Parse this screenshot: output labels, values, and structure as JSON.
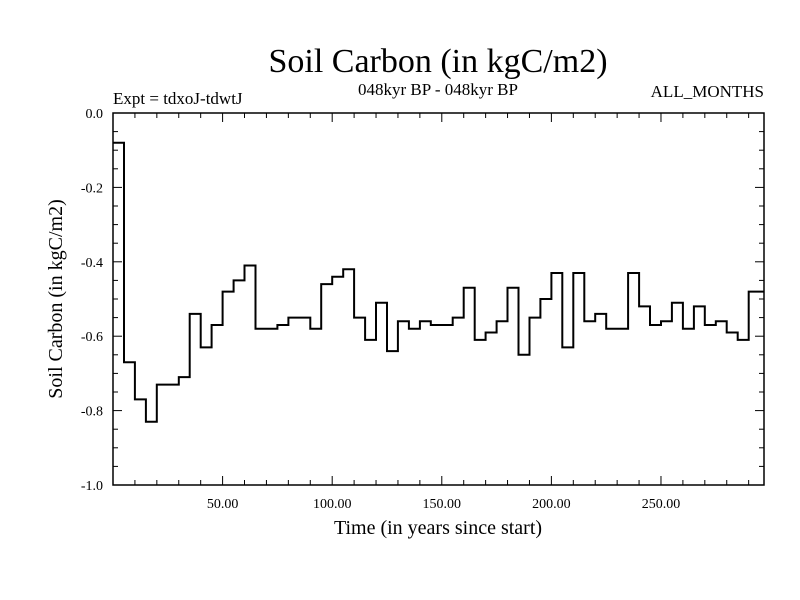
{
  "chart_data": {
    "type": "line",
    "style": "step",
    "title": "Soil Carbon (in kgC/m2)",
    "subtitle_left": "Expt = tdxoJ-tdwtJ",
    "subtitle_center": "048kyr BP - 048kyr BP",
    "subtitle_right": "ALL_MONTHS",
    "xlabel": "Time (in years since start)",
    "ylabel": "Soil Carbon (in kgC/m2)",
    "xlim": [
      0,
      297
    ],
    "ylim": [
      -1.0,
      0.0
    ],
    "x_ticks": [
      50,
      100,
      150,
      200,
      250
    ],
    "x_tick_labels": [
      "50.00",
      "100.00",
      "150.00",
      "200.00",
      "250.00"
    ],
    "y_ticks": [
      0.0,
      -0.2,
      -0.4,
      -0.6,
      -0.8,
      -1.0
    ],
    "y_tick_labels": [
      "0.0",
      "-0.2",
      "-0.4",
      "-0.6",
      "-0.8",
      "-1.0"
    ],
    "grid": false,
    "line_color": "#000000",
    "series": [
      {
        "x": [
          0,
          5,
          10,
          15,
          20,
          25,
          30,
          35,
          40,
          45,
          50,
          55,
          60,
          65,
          70,
          75,
          80,
          85,
          90,
          95,
          100,
          105,
          110,
          115,
          120,
          125,
          130,
          135,
          140,
          145,
          150,
          155,
          160,
          165,
          170,
          175,
          180,
          185,
          190,
          195,
          200,
          205,
          210,
          215,
          220,
          225,
          230,
          235,
          240,
          245,
          250,
          255,
          260,
          265,
          270,
          275,
          280,
          285,
          290,
          295
        ],
        "values": [
          -0.08,
          -0.67,
          -0.77,
          -0.83,
          -0.73,
          -0.73,
          -0.71,
          -0.54,
          -0.63,
          -0.57,
          -0.48,
          -0.45,
          -0.41,
          -0.58,
          -0.58,
          -0.57,
          -0.55,
          -0.55,
          -0.58,
          -0.46,
          -0.44,
          -0.42,
          -0.55,
          -0.61,
          -0.51,
          -0.64,
          -0.56,
          -0.58,
          -0.56,
          -0.57,
          -0.57,
          -0.55,
          -0.47,
          -0.61,
          -0.59,
          -0.56,
          -0.47,
          -0.65,
          -0.55,
          -0.5,
          -0.43,
          -0.63,
          -0.43,
          -0.56,
          -0.54,
          -0.58,
          -0.58,
          -0.43,
          -0.52,
          -0.57,
          -0.56,
          -0.51,
          -0.58,
          -0.52,
          -0.57,
          -0.56,
          -0.59,
          -0.61,
          -0.48,
          -0.48
        ]
      }
    ]
  }
}
